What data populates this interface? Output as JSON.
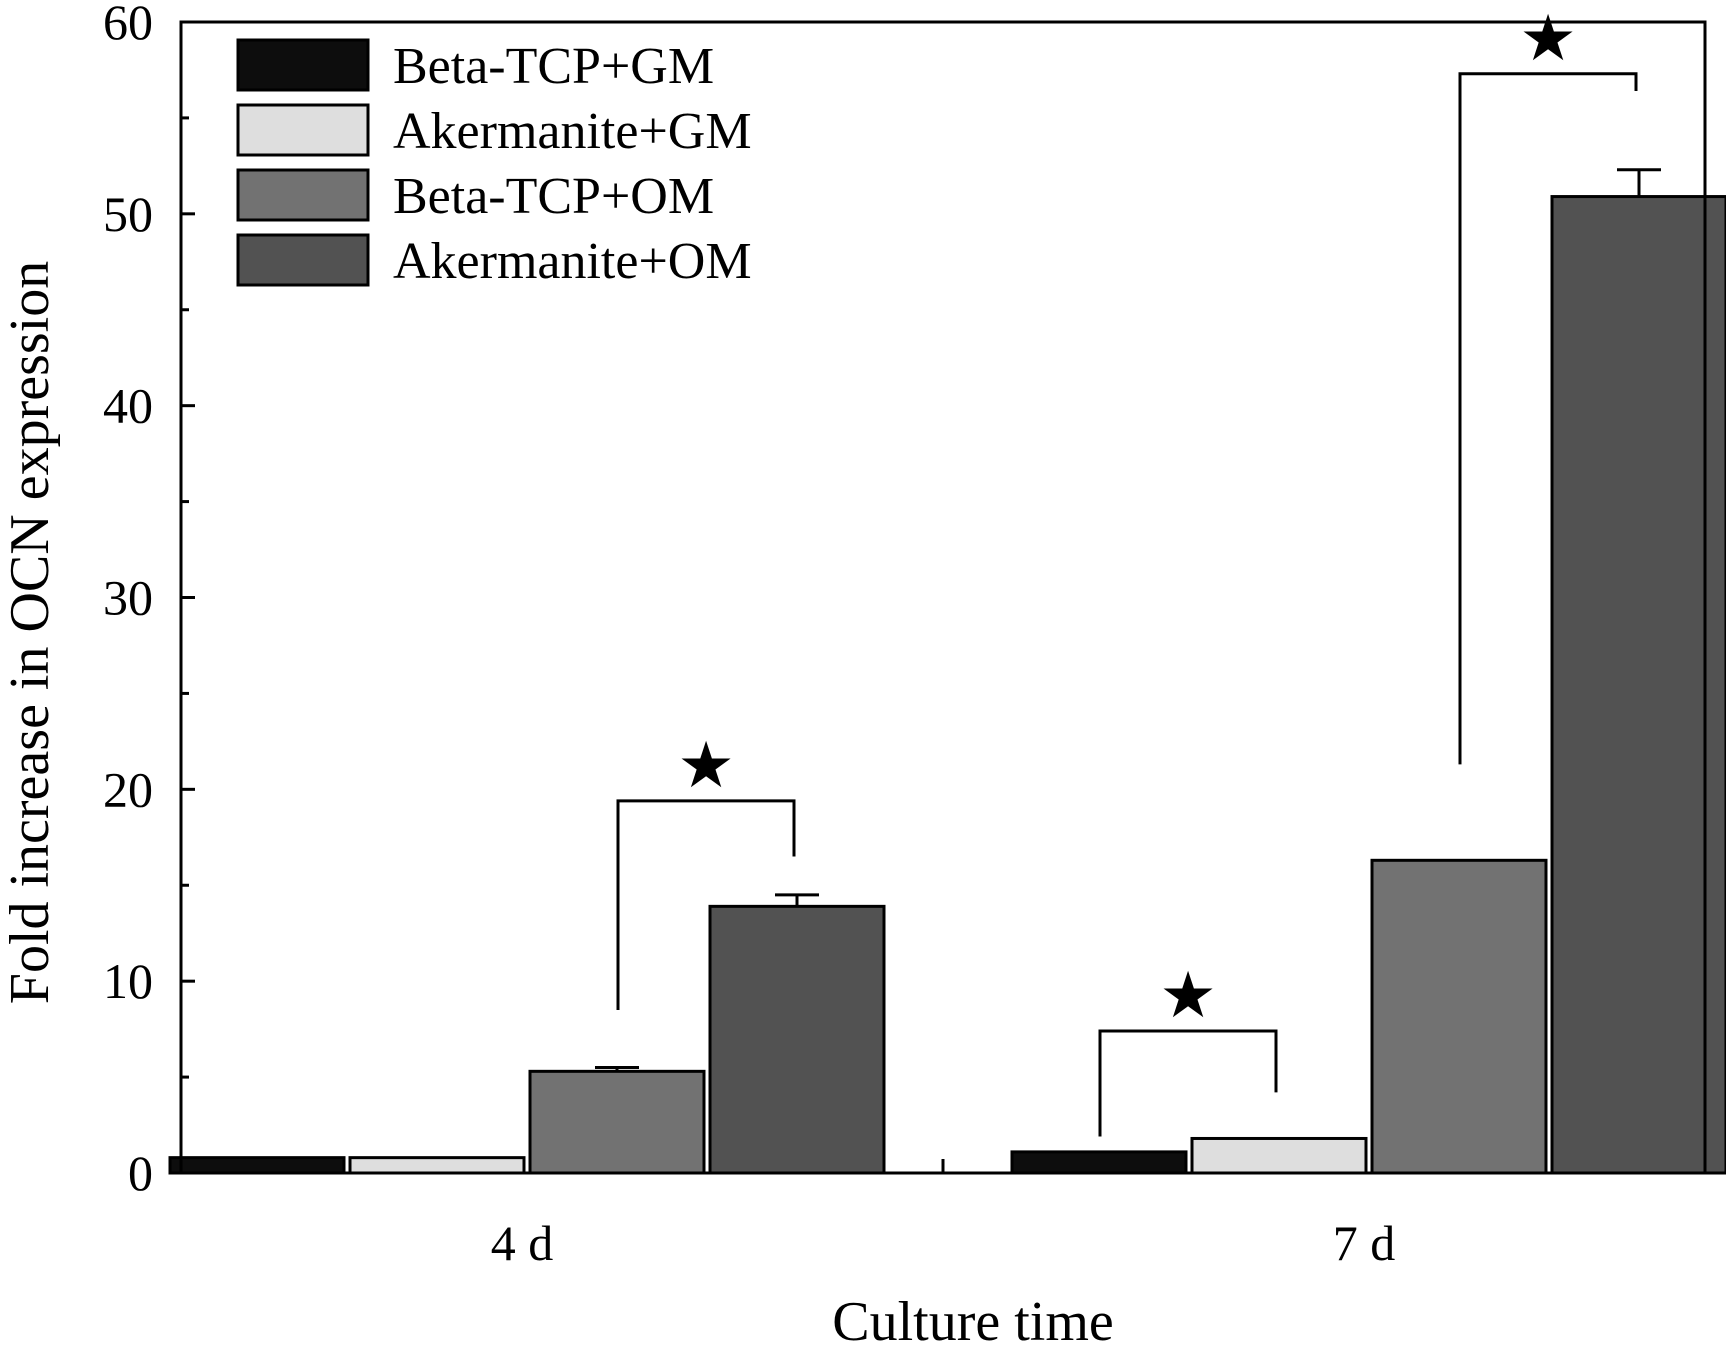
{
  "chart_data": {
    "type": "bar",
    "title": "",
    "xlabel": "Culture time",
    "ylabel": "Fold increase in OCN expression",
    "ylim": [
      0,
      60
    ],
    "yticks": [
      0,
      10,
      20,
      30,
      40,
      50,
      60
    ],
    "ytick_labels": [
      "0",
      "10",
      "20",
      "30",
      "40",
      "50",
      "60"
    ],
    "categories": [
      "4 d",
      "7 d"
    ],
    "grid": false,
    "legend_position": "top-left",
    "series": [
      {
        "name": "Beta-TCP+GM",
        "color": "#0d0d0d",
        "values": [
          0.8,
          1.1
        ],
        "errors": [
          0,
          0
        ]
      },
      {
        "name": "Akermanite+GM",
        "color": "#dedede",
        "values": [
          0.8,
          1.8
        ],
        "errors": [
          0,
          0
        ]
      },
      {
        "name": "Beta-TCP+OM",
        "color": "#727272",
        "values": [
          5.3,
          16.3
        ],
        "errors": [
          0.2,
          0
        ]
      },
      {
        "name": "Akermanite+OM",
        "color": "#525252",
        "values": [
          13.9,
          50.9
        ],
        "errors": [
          0.6,
          1.4
        ]
      }
    ],
    "significance": [
      {
        "category": 0,
        "series_from": 2,
        "series_to": 3,
        "symbol": "★",
        "left_end": 8.5,
        "right_end": 16.5,
        "bracket": 19.4
      },
      {
        "category": 1,
        "series_from": 0,
        "series_to": 1,
        "symbol": "★",
        "left_end": 1.9,
        "right_end": 4.2,
        "bracket": 7.4
      },
      {
        "category": 1,
        "series_from": 2,
        "series_to": 3,
        "symbol": "★",
        "left_end": 21.3,
        "right_end": 56.4,
        "bracket": 57.3
      }
    ]
  }
}
